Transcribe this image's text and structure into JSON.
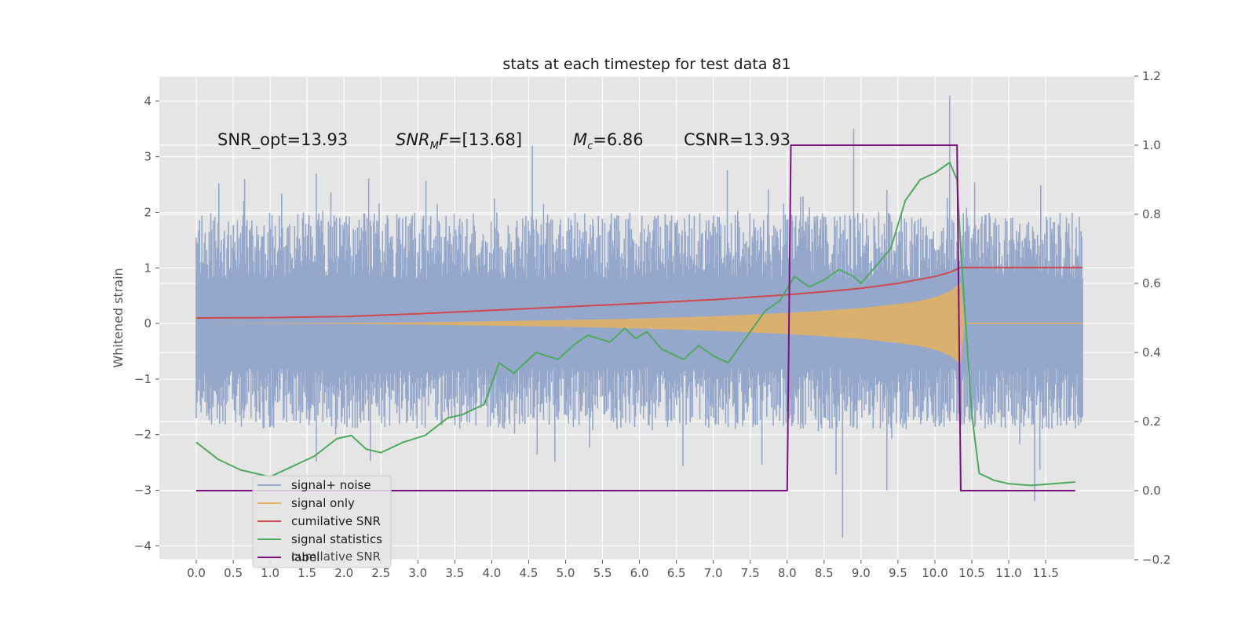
{
  "chart_data": {
    "type": "line",
    "title": "stats at each timestep for test data 81",
    "xlabel": "",
    "ylabel": "Whitened strain",
    "y2label": "",
    "xlim": [
      -0.5,
      12.7
    ],
    "ylim": [
      -4.25,
      4.45
    ],
    "y2lim": [
      -0.2,
      1.2
    ],
    "x_ticks": [
      0.0,
      0.5,
      1.0,
      1.5,
      2.0,
      2.5,
      3.0,
      3.5,
      4.0,
      4.5,
      5.0,
      5.5,
      6.0,
      6.5,
      7.0,
      7.5,
      8.0,
      8.5,
      9.0,
      9.5,
      10.0,
      10.5,
      11.0,
      11.5
    ],
    "x_tick_labels": [
      "0.0",
      "0.5",
      "1.0",
      "1.5",
      "2.0",
      "2.5",
      "3.0",
      "3.5",
      "4.0",
      "4.5",
      "5.0",
      "5.5",
      "6.0",
      "6.5",
      "7.0",
      "7.5",
      "8.0",
      "8.5",
      "9.0",
      "9.5",
      "10.0",
      "10.5",
      "11.0",
      "11.5"
    ],
    "y_ticks": [
      4,
      3,
      2,
      1,
      0,
      -1,
      -2,
      -3,
      -4
    ],
    "y_tick_labels": [
      "4",
      "3",
      "2",
      "1",
      "0",
      "−1",
      "−2",
      "−3",
      "−4"
    ],
    "y2_ticks": [
      1.2,
      1.0,
      0.8,
      0.6,
      0.4,
      0.2,
      0.0,
      -0.2
    ],
    "y2_tick_labels": [
      "1.2",
      "1.0",
      "0.8",
      "0.6",
      "0.4",
      "0.2",
      "0.0",
      "−0.2"
    ],
    "grid": true,
    "legend_position": "lower-left",
    "annotations": [
      {
        "text": "SNR_opt=13.93",
        "x": 0.2,
        "y": 3.3
      },
      {
        "text": "SNR_MF=[13.68]",
        "x": 2.6,
        "y": 3.3
      },
      {
        "text": "M_c=6.86",
        "x": 5.0,
        "y": 3.3
      },
      {
        "text": "CSNR=13.93",
        "x": 6.5,
        "y": 3.3
      }
    ],
    "series": [
      {
        "name": "signal+ noise",
        "axis": "left",
        "color": "#95a8cb",
        "description_values": {
          "x_start": 0.0,
          "x_end": 12.0,
          "typical_range": [
            -1.8,
            1.8
          ],
          "max": 4.1,
          "min": -3.85
        }
      },
      {
        "name": "signal only",
        "axis": "left",
        "color": "#e6b25f",
        "x": [
          0.0,
          1.0,
          2.0,
          3.0,
          4.0,
          5.0,
          6.0,
          7.0,
          7.5,
          8.0,
          8.5,
          9.0,
          9.5,
          9.8,
          10.0,
          10.1,
          10.2,
          10.3,
          10.35,
          10.4,
          12.0
        ],
        "envelope": [
          0.0,
          0.005,
          0.01,
          0.02,
          0.04,
          0.06,
          0.09,
          0.13,
          0.16,
          0.19,
          0.23,
          0.28,
          0.35,
          0.41,
          0.47,
          0.52,
          0.58,
          0.68,
          0.75,
          0.0,
          0.0
        ]
      },
      {
        "name": "cumilative SNR",
        "axis": "right",
        "color": "#d0494e",
        "x": [
          0.0,
          1.0,
          2.0,
          3.0,
          4.0,
          5.0,
          6.0,
          7.0,
          8.0,
          8.5,
          9.0,
          9.5,
          10.0,
          10.2,
          10.35,
          10.4,
          12.0
        ],
        "values": [
          0.5,
          0.501,
          0.504,
          0.512,
          0.522,
          0.532,
          0.542,
          0.553,
          0.567,
          0.576,
          0.586,
          0.6,
          0.62,
          0.632,
          0.646,
          0.646,
          0.646
        ]
      },
      {
        "name": "signal statistics",
        "axis": "right",
        "color": "#4ea85e",
        "x": [
          0.0,
          0.3,
          0.6,
          1.0,
          1.3,
          1.6,
          1.9,
          2.1,
          2.3,
          2.5,
          2.8,
          3.1,
          3.4,
          3.6,
          3.9,
          4.1,
          4.3,
          4.4,
          4.6,
          4.9,
          5.1,
          5.3,
          5.6,
          5.8,
          5.95,
          6.1,
          6.3,
          6.6,
          6.8,
          7.0,
          7.2,
          7.4,
          7.7,
          7.9,
          8.1,
          8.3,
          8.5,
          8.7,
          8.9,
          9.0,
          9.2,
          9.4,
          9.6,
          9.8,
          10.0,
          10.2,
          10.3,
          10.35,
          10.5,
          10.6,
          10.8,
          11.0,
          11.3,
          11.6,
          11.9
        ],
        "values": [
          0.14,
          0.09,
          0.06,
          0.04,
          0.07,
          0.1,
          0.15,
          0.16,
          0.12,
          0.11,
          0.14,
          0.16,
          0.21,
          0.22,
          0.25,
          0.37,
          0.34,
          0.36,
          0.4,
          0.38,
          0.42,
          0.45,
          0.43,
          0.47,
          0.44,
          0.46,
          0.41,
          0.38,
          0.42,
          0.39,
          0.37,
          0.43,
          0.52,
          0.55,
          0.62,
          0.59,
          0.61,
          0.64,
          0.62,
          0.6,
          0.65,
          0.7,
          0.84,
          0.9,
          0.92,
          0.95,
          0.9,
          0.7,
          0.22,
          0.05,
          0.03,
          0.02,
          0.015,
          0.02,
          0.025
        ]
      },
      {
        "name": "label",
        "axis": "right",
        "color": "#7b0f7f",
        "x": [
          0.0,
          8.0,
          8.05,
          10.3,
          10.35,
          11.9
        ],
        "values": [
          0.0,
          0.0,
          1.0,
          1.0,
          0.0,
          0.0
        ]
      }
    ],
    "legend_overlap_text": "cumilative SNR"
  }
}
